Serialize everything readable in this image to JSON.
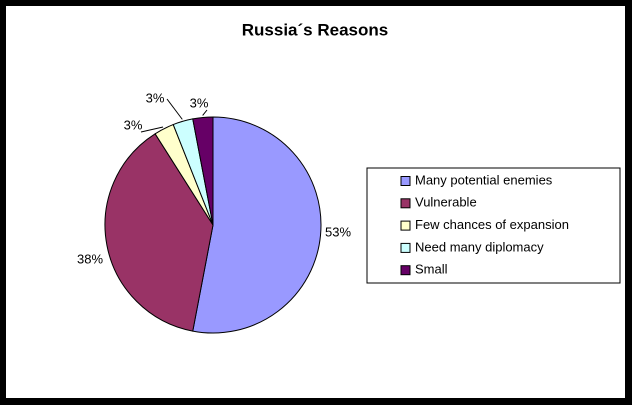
{
  "chart_data": {
    "type": "pie",
    "title": "Russia´s Reasons",
    "categories": [
      "Many potential enemies",
      "Vulnerable",
      "Few chances of expansion",
      "Need many diplomacy",
      "Small"
    ],
    "values": [
      53,
      38,
      3,
      3,
      3
    ],
    "value_labels": [
      "53%",
      "38%",
      "3%",
      "3%",
      "3%"
    ],
    "colors": [
      "#9999ff",
      "#993366",
      "#ffffcc",
      "#ccffff",
      "#660066"
    ],
    "legend": "right"
  }
}
